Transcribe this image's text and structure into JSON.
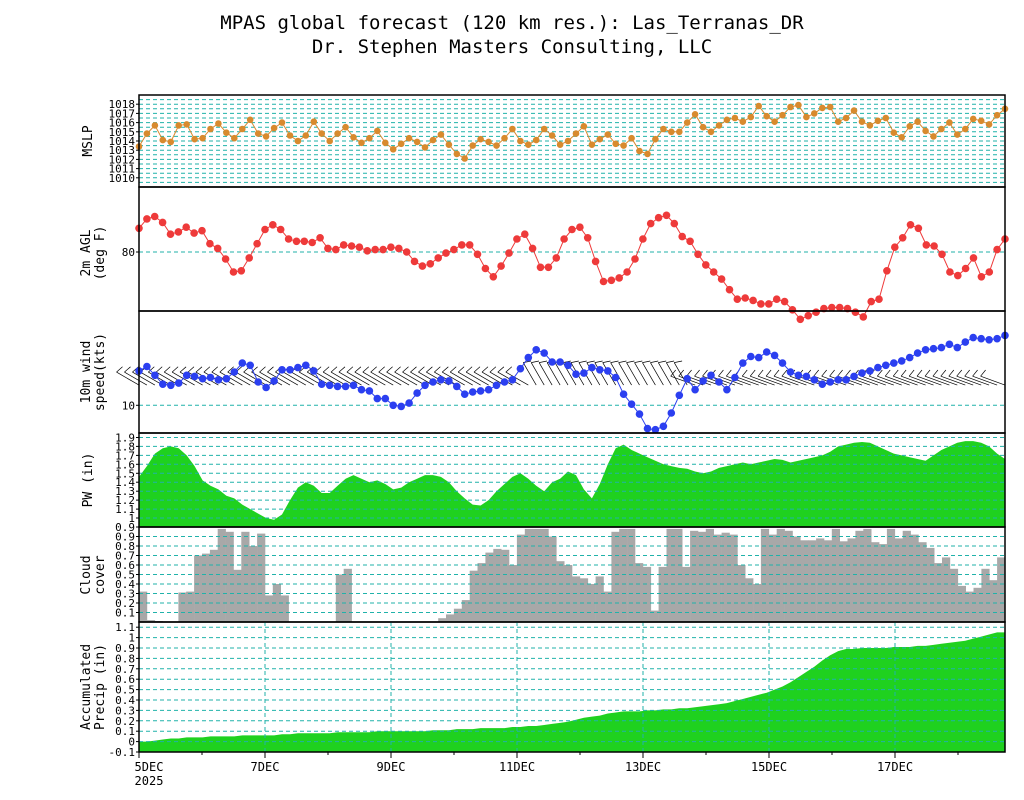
{
  "header": {
    "title": "MPAS global forecast (120 km res.): Las_Terranas_DR",
    "subtitle": "Dr. Stephen Masters Consulting, LLC"
  },
  "colors": {
    "grid": "#20b2aa",
    "mslp": "#d88a2e",
    "temp": "#ee3a3a",
    "wind": "#2b3ff0",
    "pw": "#1fd11f",
    "cloud": "#a8a8a8",
    "precip": "#1fd11f",
    "frame": "#000000"
  },
  "chart_data": [
    {
      "type": "line",
      "panel": "mslp",
      "ylabel": "MSLP",
      "ylim": [
        1009,
        1019
      ],
      "grid": "horizontal every 0.5",
      "yticks": [
        1010,
        1011,
        1012,
        1013,
        1014,
        1015,
        1016,
        1017,
        1018
      ],
      "values": [
        1013.4,
        1014.8,
        1015.7,
        1014.1,
        1013.9,
        1015.7,
        1015.8,
        1014.2,
        1014.3,
        1015.3,
        1015.9,
        1014.9,
        1014.3,
        1015.3,
        1016.3,
        1014.8,
        1014.5,
        1015.4,
        1016.0,
        1014.6,
        1014.0,
        1014.6,
        1016.1,
        1014.8,
        1014.0,
        1014.8,
        1015.5,
        1014.4,
        1013.8,
        1014.3,
        1015.1,
        1013.8,
        1013.1,
        1013.7,
        1014.3,
        1013.9,
        1013.3,
        1014.1,
        1014.7,
        1013.6,
        1012.6,
        1012.1,
        1013.5,
        1014.2,
        1013.9,
        1013.5,
        1014.3,
        1015.3,
        1014.0,
        1013.6,
        1014.1,
        1015.3,
        1014.6,
        1013.6,
        1014.0,
        1014.8,
        1015.6,
        1013.6,
        1014.2,
        1014.7,
        1013.7,
        1013.5,
        1014.3,
        1012.9,
        1012.6,
        1014.2,
        1015.3,
        1015.0,
        1015.0,
        1016.0,
        1016.9,
        1015.5,
        1015.0,
        1015.7,
        1016.3,
        1016.5,
        1016.1,
        1016.6,
        1017.8,
        1016.7,
        1016.1,
        1016.8,
        1017.7,
        1017.9,
        1016.6,
        1017.0,
        1017.6,
        1017.7,
        1016.1,
        1016.5,
        1017.3,
        1016.1,
        1015.7,
        1016.2,
        1016.5,
        1014.9,
        1014.4,
        1015.6,
        1016.1,
        1015.1,
        1014.5,
        1015.3,
        1016.0,
        1014.7,
        1015.3,
        1016.4,
        1016.2,
        1015.8,
        1016.8,
        1017.5
      ],
      "times": "hourly from 5DEC 2025 00Z, 2-hour spacing (110 points)"
    },
    {
      "type": "line",
      "panel": "temperature",
      "ylabel": "2m AGL (deg F)",
      "ylim": [
        75,
        85.5
      ],
      "yticks": [
        80
      ],
      "values": [
        82.0,
        82.8,
        83.0,
        82.5,
        81.5,
        81.7,
        82.1,
        81.6,
        81.8,
        80.7,
        80.3,
        79.4,
        78.3,
        78.4,
        79.5,
        80.7,
        81.9,
        82.3,
        81.9,
        81.1,
        80.9,
        80.9,
        80.8,
        81.2,
        80.3,
        80.2,
        80.6,
        80.5,
        80.4,
        80.1,
        80.2,
        80.2,
        80.4,
        80.3,
        80.0,
        79.2,
        78.8,
        79.0,
        79.5,
        79.9,
        80.2,
        80.6,
        80.6,
        79.8,
        78.6,
        77.9,
        78.8,
        79.9,
        81.1,
        81.5,
        80.3,
        78.7,
        78.7,
        79.5,
        81.1,
        81.9,
        82.1,
        81.2,
        79.2,
        77.5,
        77.6,
        77.8,
        78.3,
        79.4,
        81.1,
        82.4,
        82.9,
        83.1,
        82.4,
        81.3,
        80.9,
        79.8,
        78.9,
        78.3,
        77.7,
        76.8,
        76.0,
        76.1,
        75.9,
        75.6,
        75.6,
        76.0,
        75.8,
        75.1,
        74.3,
        74.6,
        74.9,
        75.2,
        75.3,
        75.3,
        75.2,
        74.9,
        74.5,
        75.8,
        76.0,
        78.4,
        80.4,
        81.2,
        82.3,
        82.0,
        80.6,
        80.5,
        79.8,
        78.3,
        78.0,
        78.6,
        79.5,
        77.9,
        78.3,
        80.2,
        81.1
      ],
      "times": "2-hour spacing from 5DEC 2025"
    },
    {
      "type": "line",
      "panel": "wind",
      "ylabel": "10m wind speed(kts)",
      "ylim": [
        7.5,
        18.5
      ],
      "yticks": [
        10
      ],
      "values": [
        13.1,
        13.5,
        12.7,
        11.9,
        11.8,
        12.0,
        12.7,
        12.6,
        12.4,
        12.5,
        12.3,
        12.4,
        13.0,
        13.8,
        13.6,
        12.1,
        11.6,
        12.2,
        13.2,
        13.2,
        13.4,
        13.6,
        13.1,
        11.9,
        11.8,
        11.7,
        11.7,
        11.8,
        11.4,
        11.3,
        10.6,
        10.6,
        10.0,
        9.9,
        10.2,
        11.1,
        11.8,
        12.1,
        12.3,
        12.2,
        11.7,
        11.0,
        11.2,
        11.3,
        11.4,
        11.8,
        12.1,
        12.3,
        13.3,
        14.3,
        15.0,
        14.7,
        13.9,
        13.9,
        13.6,
        12.8,
        12.9,
        13.4,
        13.2,
        13.1,
        12.5,
        11.0,
        10.1,
        9.2,
        7.9,
        7.8,
        8.1,
        9.3,
        10.9,
        12.4,
        11.4,
        12.2,
        12.7,
        12.1,
        11.4,
        12.5,
        13.8,
        14.4,
        14.3,
        14.8,
        14.5,
        13.8,
        13.0,
        12.7,
        12.6,
        12.3,
        11.9,
        12.1,
        12.3,
        12.3,
        12.6,
        12.9,
        13.1,
        13.4,
        13.6,
        13.8,
        14.0,
        14.3,
        14.7,
        15.0,
        15.1,
        15.2,
        15.5,
        15.2,
        15.7,
        16.1,
        16.0,
        15.9,
        16.0,
        16.3
      ],
      "barbs": "wind barbs along series, mostly from NE/E",
      "times": "2-hour spacing from 5DEC 2025"
    },
    {
      "type": "area",
      "panel": "pw",
      "ylabel": "PW (in)",
      "ylim": [
        0.9,
        1.95
      ],
      "yticks": [
        0.9,
        1,
        1.1,
        1.2,
        1.3,
        1.4,
        1.5,
        1.6,
        1.7,
        1.8,
        1.9
      ],
      "values": [
        1.46,
        1.58,
        1.72,
        1.78,
        1.8,
        1.78,
        1.7,
        1.58,
        1.42,
        1.36,
        1.32,
        1.25,
        1.22,
        1.15,
        1.1,
        1.05,
        1.0,
        0.98,
        1.04,
        1.2,
        1.34,
        1.4,
        1.36,
        1.28,
        1.28,
        1.36,
        1.44,
        1.48,
        1.44,
        1.4,
        1.42,
        1.38,
        1.32,
        1.34,
        1.4,
        1.44,
        1.48,
        1.48,
        1.46,
        1.4,
        1.3,
        1.22,
        1.15,
        1.14,
        1.2,
        1.3,
        1.38,
        1.46,
        1.5,
        1.44,
        1.36,
        1.3,
        1.4,
        1.44,
        1.52,
        1.48,
        1.32,
        1.22,
        1.38,
        1.6,
        1.78,
        1.82,
        1.76,
        1.72,
        1.68,
        1.64,
        1.6,
        1.58,
        1.56,
        1.55,
        1.52,
        1.5,
        1.52,
        1.56,
        1.58,
        1.6,
        1.62,
        1.6,
        1.62,
        1.64,
        1.66,
        1.65,
        1.62,
        1.64,
        1.66,
        1.68,
        1.7,
        1.74,
        1.8,
        1.82,
        1.84,
        1.85,
        1.84,
        1.8,
        1.76,
        1.72,
        1.7,
        1.68,
        1.66,
        1.64,
        1.7,
        1.76,
        1.8,
        1.84,
        1.86,
        1.86,
        1.84,
        1.8,
        1.72,
        1.66
      ]
    },
    {
      "type": "bar",
      "panel": "cloud",
      "ylabel": "Cloud cover",
      "ylim": [
        0,
        1
      ],
      "yticks": [
        0.1,
        0.2,
        0.3,
        0.4,
        0.5,
        0.6,
        0.7,
        0.8,
        0.9
      ],
      "values": [
        0.32,
        0.02,
        0.01,
        0.0,
        0.0,
        0.31,
        0.32,
        0.7,
        0.72,
        0.76,
        0.98,
        0.95,
        0.55,
        0.95,
        0.8,
        0.93,
        0.28,
        0.4,
        0.28,
        0.0,
        0.0,
        0.0,
        0.0,
        0.0,
        0.0,
        0.5,
        0.56,
        0.0,
        0.0,
        0.0,
        0.0,
        0.0,
        0.0,
        0.0,
        0.0,
        0.0,
        0.0,
        0.0,
        0.04,
        0.08,
        0.14,
        0.23,
        0.54,
        0.62,
        0.73,
        0.77,
        0.76,
        0.6,
        0.92,
        0.98,
        0.98,
        0.98,
        0.9,
        0.64,
        0.6,
        0.48,
        0.46,
        0.4,
        0.48,
        0.32,
        0.95,
        0.98,
        0.98,
        0.62,
        0.58,
        0.12,
        0.58,
        0.98,
        0.98,
        0.58,
        0.96,
        0.95,
        0.98,
        0.92,
        0.94,
        0.92,
        0.6,
        0.46,
        0.4,
        0.98,
        0.92,
        0.98,
        0.96,
        0.9,
        0.86,
        0.86,
        0.88,
        0.86,
        0.98,
        0.85,
        0.88,
        0.96,
        0.98,
        0.84,
        0.82,
        0.98,
        0.88,
        0.96,
        0.92,
        0.84,
        0.78,
        0.62,
        0.68,
        0.56,
        0.38,
        0.32,
        0.36,
        0.56,
        0.44,
        0.68
      ],
      "note": "0.04 spacing gap near 13DEC"
    },
    {
      "type": "area",
      "panel": "precip",
      "ylabel": "Accumulated Precip (in)",
      "ylim": [
        -0.1,
        1.15
      ],
      "yticks": [
        -0.1,
        0,
        0.1,
        0.2,
        0.3,
        0.4,
        0.5,
        0.6,
        0.7,
        0.8,
        0.9,
        1,
        1.1
      ],
      "values": [
        0.0,
        0.0,
        0.01,
        0.02,
        0.03,
        0.03,
        0.04,
        0.04,
        0.04,
        0.05,
        0.05,
        0.05,
        0.05,
        0.06,
        0.06,
        0.06,
        0.06,
        0.06,
        0.07,
        0.07,
        0.08,
        0.08,
        0.08,
        0.08,
        0.08,
        0.09,
        0.09,
        0.09,
        0.09,
        0.09,
        0.1,
        0.1,
        0.1,
        0.1,
        0.1,
        0.1,
        0.1,
        0.11,
        0.11,
        0.11,
        0.12,
        0.12,
        0.12,
        0.13,
        0.13,
        0.13,
        0.13,
        0.14,
        0.14,
        0.15,
        0.15,
        0.16,
        0.17,
        0.18,
        0.19,
        0.21,
        0.23,
        0.24,
        0.25,
        0.27,
        0.28,
        0.29,
        0.29,
        0.29,
        0.3,
        0.3,
        0.31,
        0.31,
        0.32,
        0.32,
        0.33,
        0.34,
        0.35,
        0.36,
        0.37,
        0.39,
        0.41,
        0.43,
        0.45,
        0.47,
        0.5,
        0.53,
        0.57,
        0.62,
        0.67,
        0.72,
        0.78,
        0.83,
        0.87,
        0.89,
        0.89,
        0.9,
        0.9,
        0.9,
        0.9,
        0.91,
        0.91,
        0.91,
        0.92,
        0.92,
        0.93,
        0.94,
        0.95,
        0.96,
        0.97,
        0.99,
        1.01,
        1.03,
        1.05,
        1.05
      ]
    }
  ],
  "xaxis": {
    "ticks": [
      "5DEC",
      "7DEC",
      "9DEC",
      "11DEC",
      "13DEC",
      "15DEC",
      "17DEC"
    ],
    "year_label": "2025"
  },
  "panels": {
    "mslp": {
      "label": "MSLP",
      "ticks": [
        "1010",
        "1011",
        "1012",
        "1013",
        "1014",
        "1015",
        "1016",
        "1017",
        "1018"
      ]
    },
    "temp": {
      "label1": "2m AGL",
      "label2": "(deg F)",
      "tick": "80"
    },
    "wind": {
      "label1": "10m wind",
      "label2": "speed(kts)",
      "tick": "10"
    },
    "pw": {
      "label": "PW (in)",
      "ticks": [
        "0.9",
        "1",
        "1.1",
        "1.2",
        "1.3",
        "1.4",
        "1.5",
        "1.6",
        "1.7",
        "1.8",
        "1.9"
      ]
    },
    "cloud": {
      "label1": "Cloud",
      "label2": "cover",
      "ticks": [
        "0.1",
        "0.2",
        "0.3",
        "0.4",
        "0.5",
        "0.6",
        "0.7",
        "0.8",
        "0.9"
      ]
    },
    "precip": {
      "label1": "Accumulated",
      "label2": "Precip (in)",
      "ticks": [
        "-0.1",
        "0",
        "0.1",
        "0.2",
        "0.3",
        "0.4",
        "0.5",
        "0.6",
        "0.7",
        "0.8",
        "0.9",
        "1",
        "1.1"
      ]
    }
  }
}
